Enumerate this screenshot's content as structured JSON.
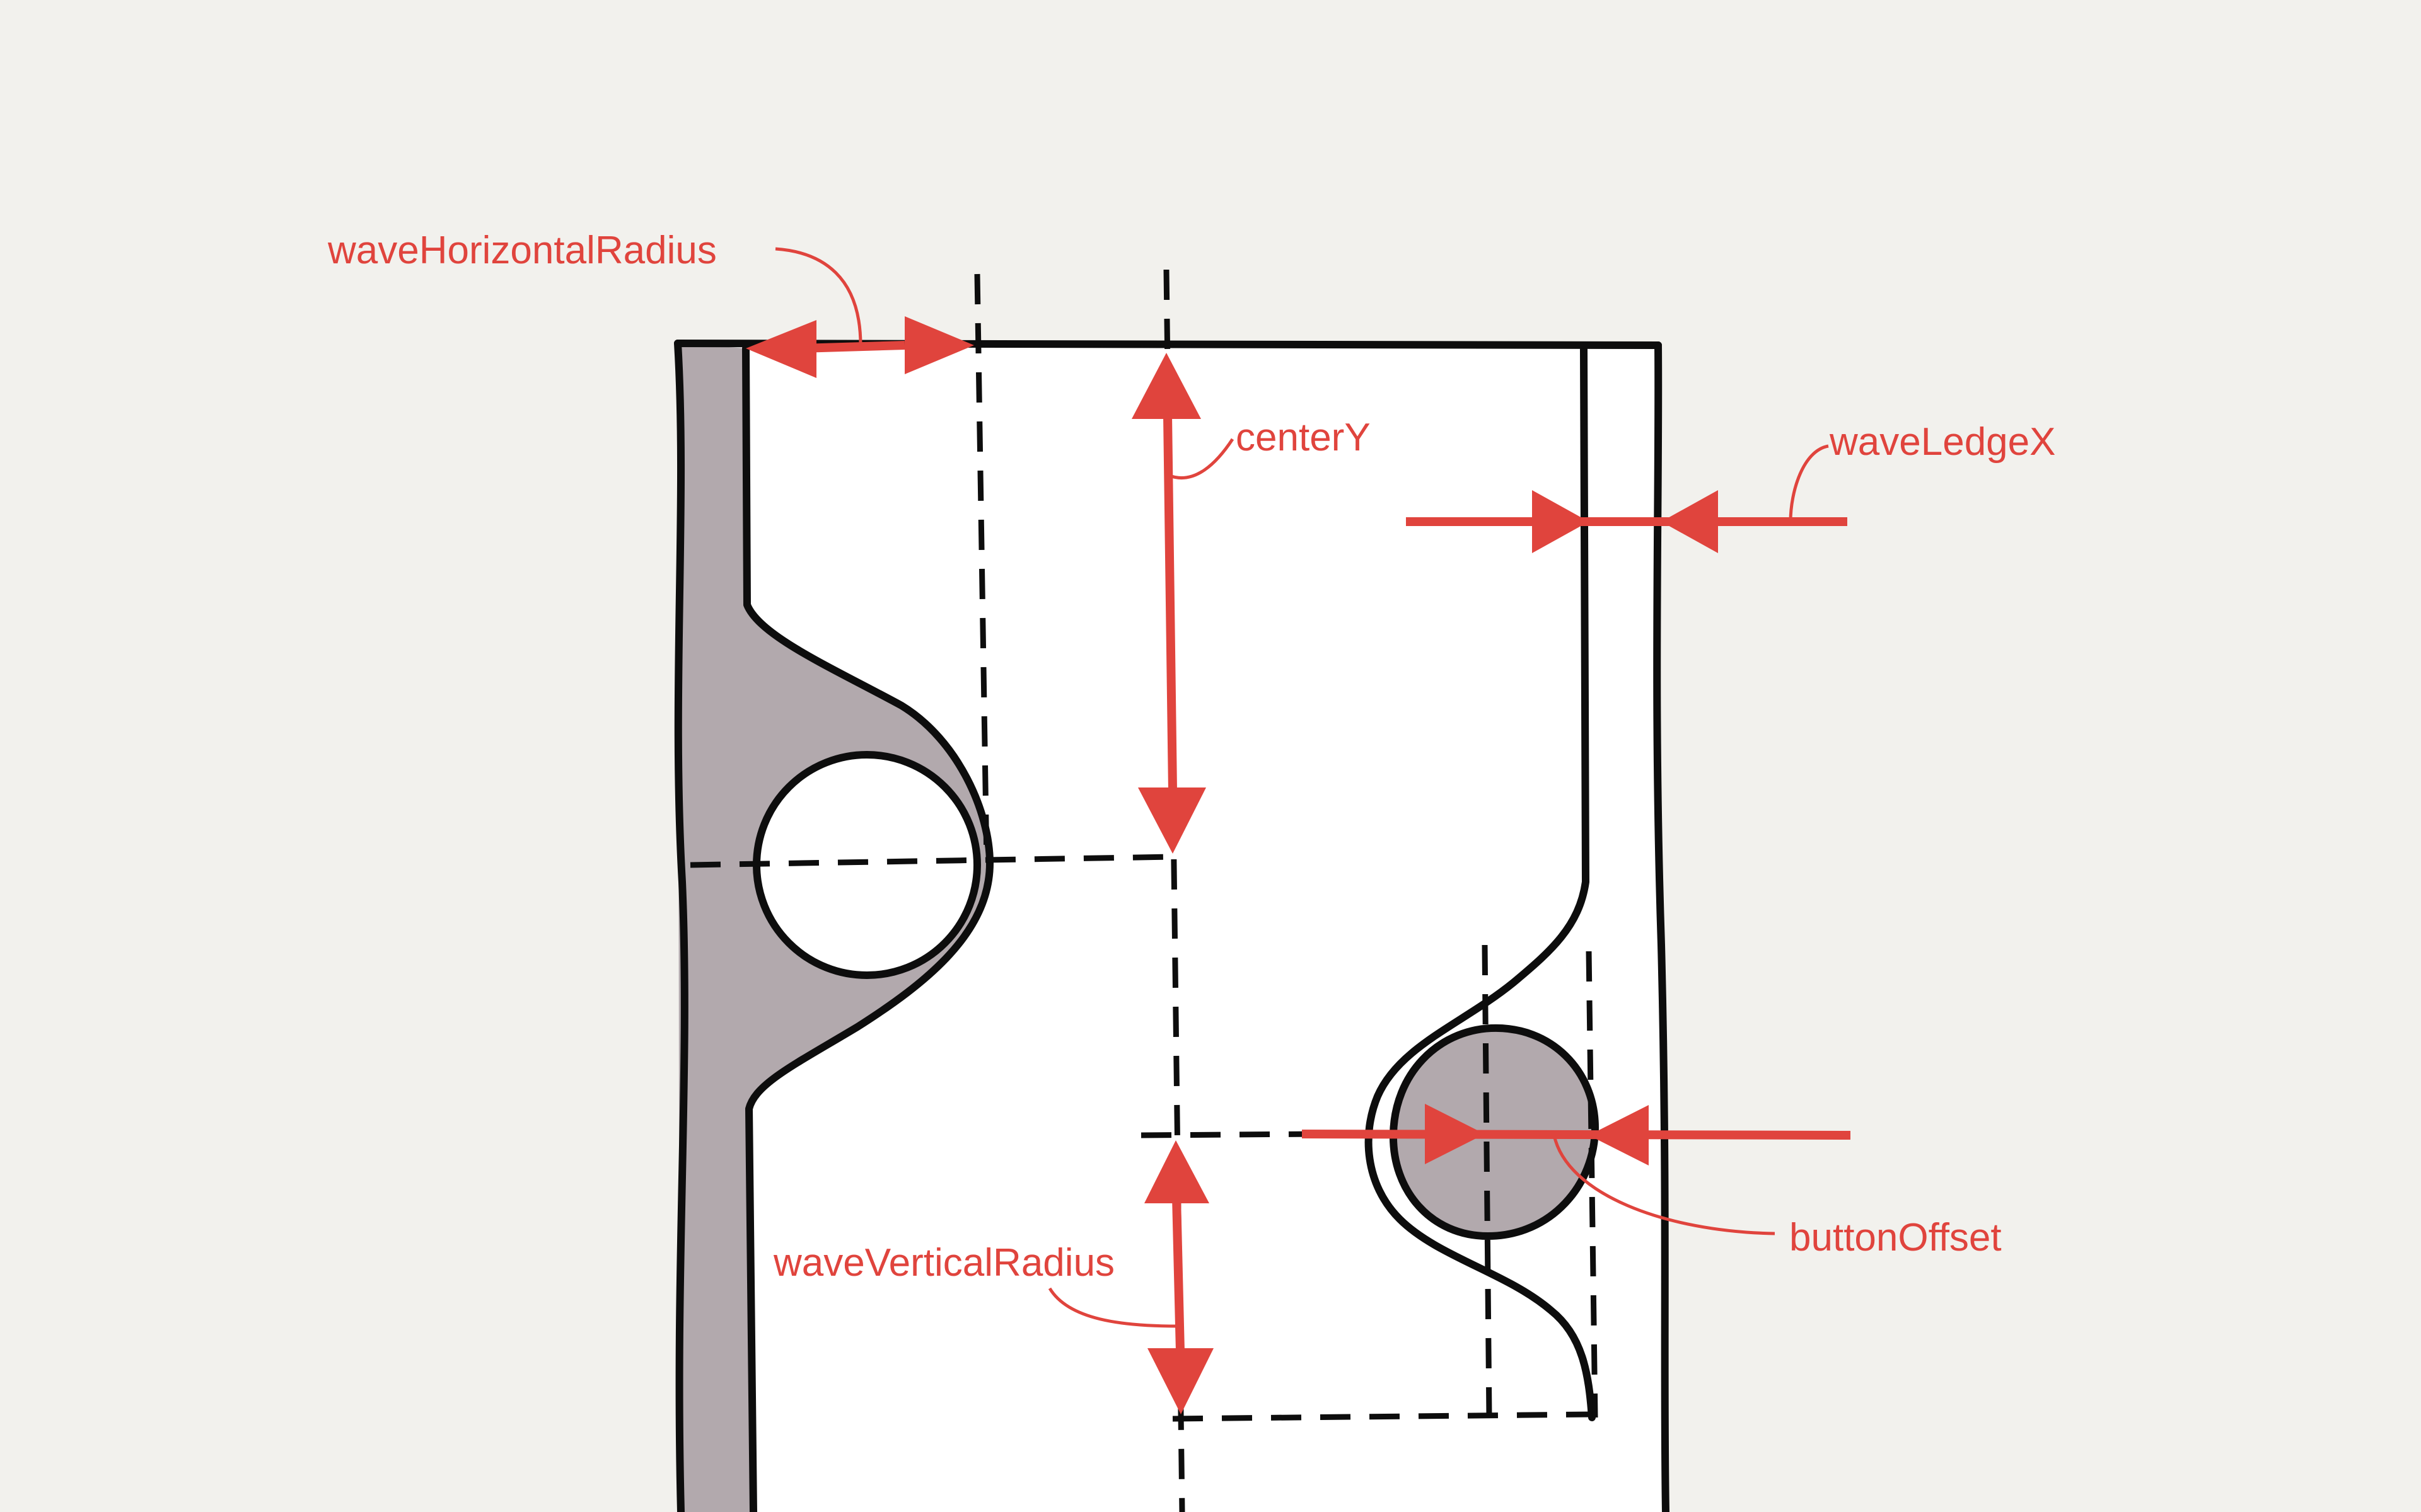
{
  "diagram": {
    "labels": {
      "wave_horizontal_radius": "waveHorizontalRadius",
      "center_y": "centerY",
      "wave_ledge_x": "waveLedgeX",
      "button_offset": "buttonOffset",
      "wave_vertical_radius": "waveVerticalRadius"
    },
    "colors": {
      "background": "#f2f1ed",
      "panel": "#ffffff",
      "wave_fill": "#b2a9ad",
      "ink": "#0d0d0d",
      "accent": "#e0443d"
    }
  }
}
